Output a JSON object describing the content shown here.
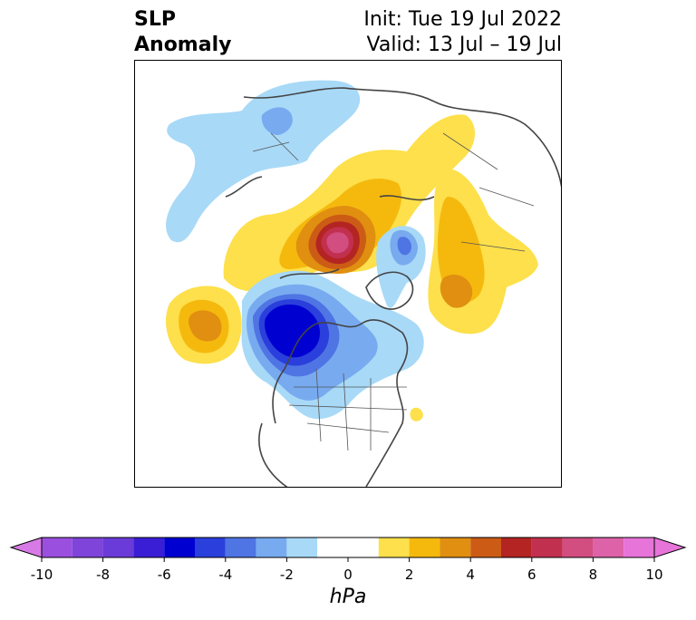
{
  "header": {
    "title_line1": "SLP",
    "title_line2": "Anomaly",
    "init_text": "Init: Tue 19 Jul 2022",
    "valid_text": "Valid: 13 Jul – 19 Jul"
  },
  "colorbar": {
    "units": "hPa",
    "ticks": [
      "-10",
      "-8",
      "-6",
      "-4",
      "-2",
      "0",
      "2",
      "4",
      "6",
      "8",
      "10"
    ],
    "bins": [
      {
        "range": [
          -10,
          -9
        ],
        "color": "#9a4fde"
      },
      {
        "range": [
          -9,
          -8
        ],
        "color": "#7f44d9"
      },
      {
        "range": [
          -8,
          -7
        ],
        "color": "#6a3bd8"
      },
      {
        "range": [
          -7,
          -6
        ],
        "color": "#3a1ed6"
      },
      {
        "range": [
          -6,
          -5
        ],
        "color": "#0000d1"
      },
      {
        "range": [
          -5,
          -4
        ],
        "color": "#2a3fdb"
      },
      {
        "range": [
          -4,
          -3
        ],
        "color": "#4f74e3"
      },
      {
        "range": [
          -3,
          -2
        ],
        "color": "#78aaf0"
      },
      {
        "range": [
          -2,
          -1
        ],
        "color": "#a8d9f7"
      },
      {
        "range": [
          -1,
          1
        ],
        "color": "#ffffff"
      },
      {
        "range": [
          1,
          2
        ],
        "color": "#fde04b"
      },
      {
        "range": [
          2,
          3
        ],
        "color": "#f5b90e"
      },
      {
        "range": [
          3,
          4
        ],
        "color": "#e08f11"
      },
      {
        "range": [
          4,
          5
        ],
        "color": "#cc5c15"
      },
      {
        "range": [
          5,
          6
        ],
        "color": "#b32422"
      },
      {
        "range": [
          6,
          7
        ],
        "color": "#c2304f"
      },
      {
        "range": [
          7,
          8
        ],
        "color": "#d24d80"
      },
      {
        "range": [
          8,
          9
        ],
        "color": "#dd62a8"
      },
      {
        "range": [
          9,
          10
        ],
        "color": "#e774d8"
      }
    ],
    "extend_low_color": "#d87ae6",
    "extend_high_color": "#e774d8"
  },
  "map": {
    "projection": "north-polar-stereographic",
    "field": "sea-level-pressure-anomaly"
  }
}
